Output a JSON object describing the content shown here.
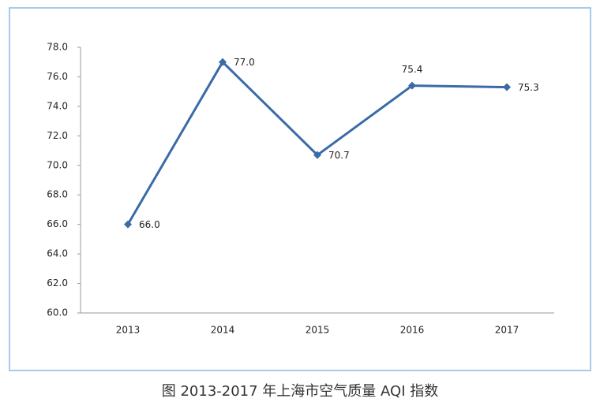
{
  "chart_data": {
    "type": "line",
    "title": "图  2013-2017 年上海市空气质量 AQI 指数",
    "categories": [
      "2013",
      "2014",
      "2015",
      "2016",
      "2017"
    ],
    "values": [
      66.0,
      77.0,
      70.7,
      75.4,
      75.3
    ],
    "value_labels": [
      "66.0",
      "77.0",
      "70.7",
      "75.4",
      "75.3"
    ],
    "color": "#3a6aa8",
    "ylim": [
      60,
      78
    ],
    "yticks": [
      {
        "value": 60,
        "label": "60.0"
      },
      {
        "value": 62,
        "label": "62.0"
      },
      {
        "value": 64,
        "label": "64.0"
      },
      {
        "value": 66,
        "label": "66.0"
      },
      {
        "value": 68,
        "label": "68.0"
      },
      {
        "value": 70,
        "label": "70.0"
      },
      {
        "value": 72,
        "label": "72.0"
      },
      {
        "value": 74,
        "label": "74.0"
      },
      {
        "value": 76,
        "label": "76.0"
      },
      {
        "value": 78,
        "label": "78.0"
      }
    ],
    "grid": false
  }
}
